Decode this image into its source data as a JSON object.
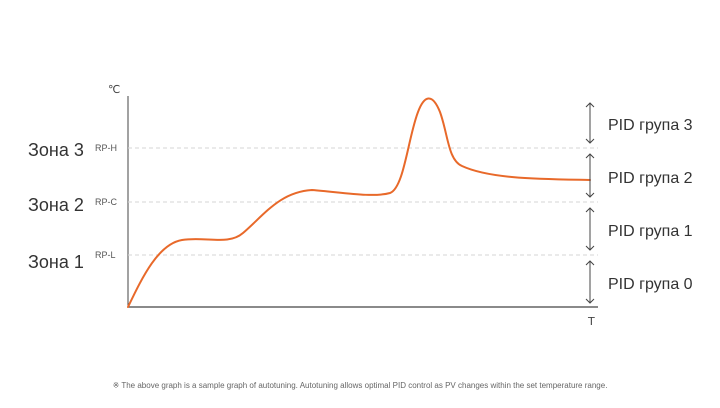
{
  "diagram": {
    "unit_label": "℃",
    "time_label": "T",
    "zones": [
      {
        "label": "Зона 3",
        "setpoint": "RP-H"
      },
      {
        "label": "Зона 2",
        "setpoint": "RP-C"
      },
      {
        "label": "Зона 1",
        "setpoint": "RP-L"
      }
    ],
    "pid_groups": [
      {
        "label": "PID група 3"
      },
      {
        "label": "PID група 2"
      },
      {
        "label": "PID група 1"
      },
      {
        "label": "PID група 0"
      }
    ],
    "curve_color": "#e8692a",
    "footnote": "※ The above graph is a sample graph of autotuning. Autotuning allows optimal PID control as PV changes within the set temperature range."
  }
}
